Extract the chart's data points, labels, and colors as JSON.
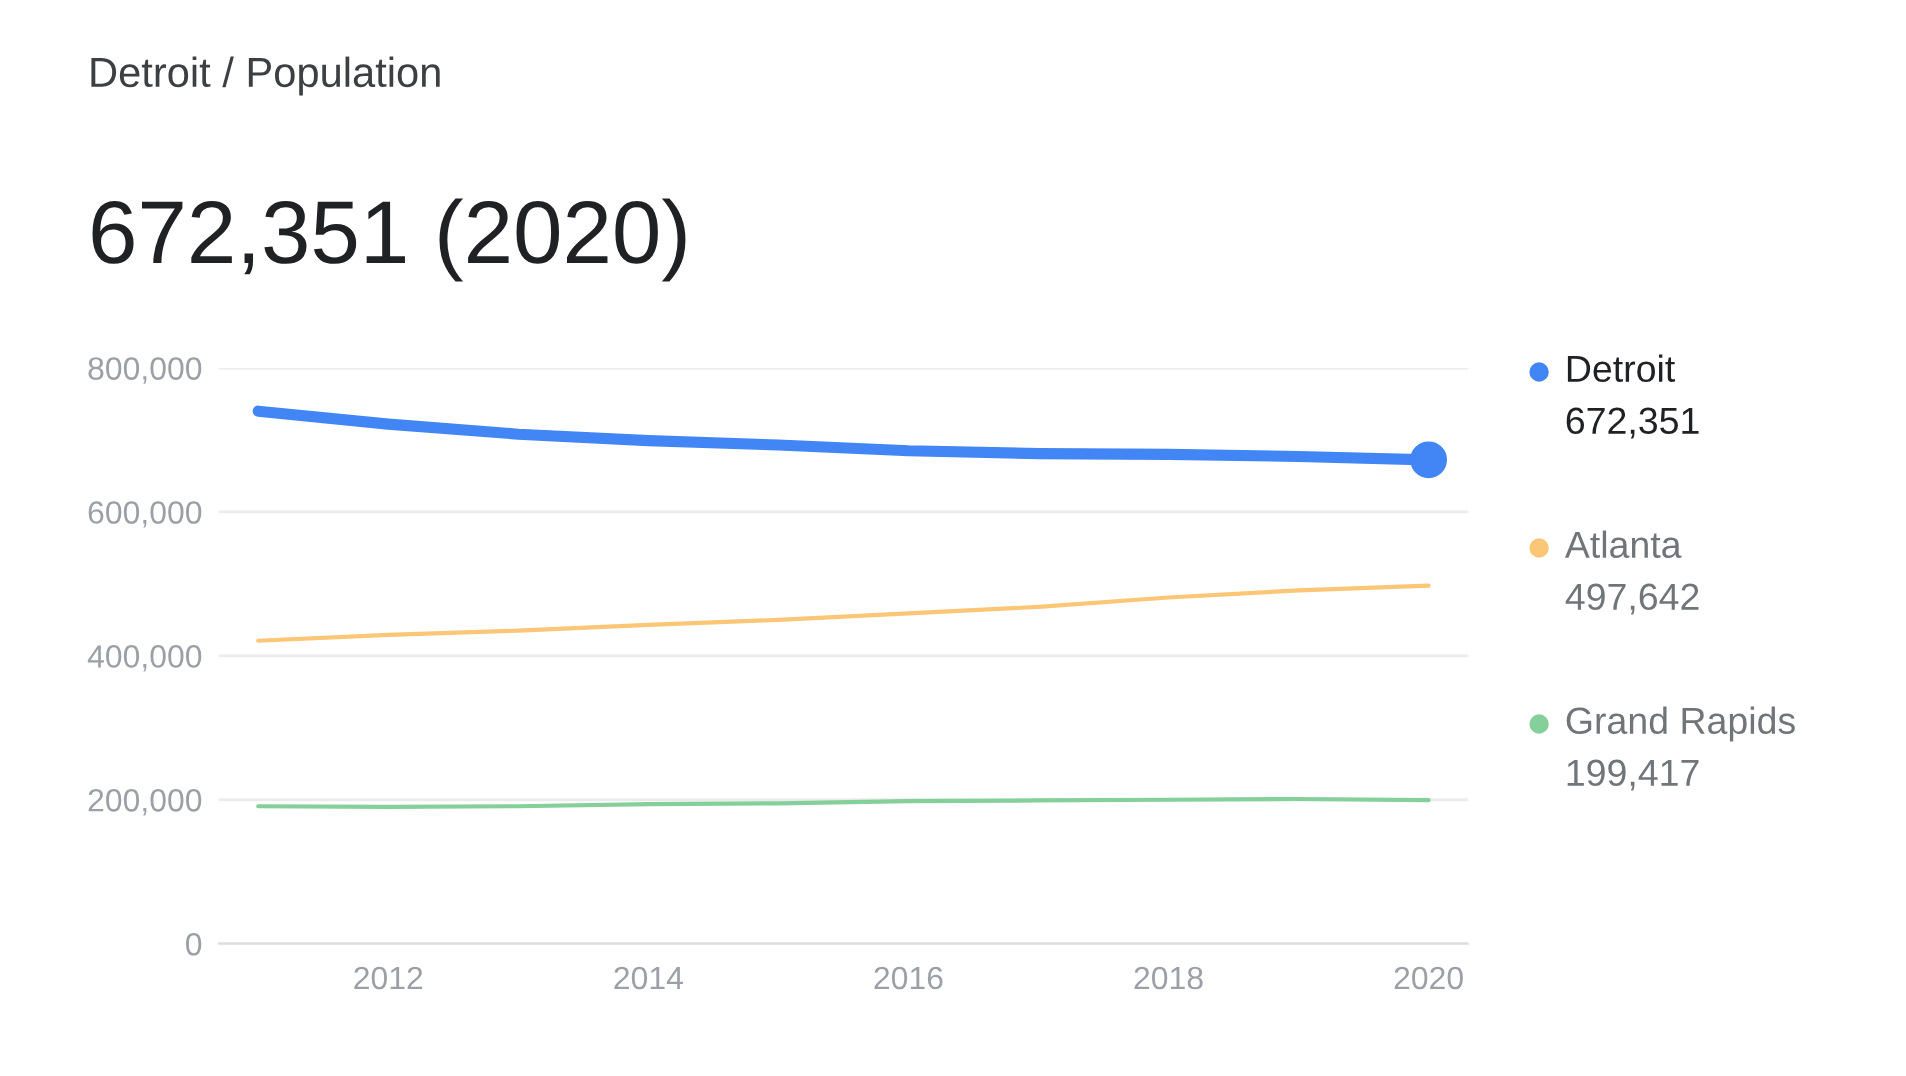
{
  "chart_data": {
    "type": "line",
    "title": "Detroit / Population",
    "subtitle": "672,351 (2020)",
    "x": [
      2011,
      2012,
      2013,
      2014,
      2015,
      2016,
      2017,
      2018,
      2019,
      2020
    ],
    "series": [
      {
        "name": "Detroit",
        "color": "#4285f4",
        "values": [
          740000,
          722000,
          708000,
          699000,
          693000,
          685000,
          681000,
          680000,
          677000,
          672351
        ]
      },
      {
        "name": "Atlanta",
        "color": "#fbc676",
        "values": [
          421000,
          429000,
          435000,
          443000,
          450000,
          459000,
          468000,
          481000,
          491000,
          497642
        ]
      },
      {
        "name": "Grand Rapids",
        "color": "#85cf9a",
        "values": [
          191000,
          190000,
          191000,
          194000,
          195000,
          198000,
          199000,
          200000,
          201000,
          199417
        ]
      },
      {
        "type": "scatter",
        "color": "#4285f4",
        "marker": "circle",
        "x": [
          2020
        ],
        "values": [
          672351
        ]
      }
    ],
    "annotations": [
      "672,351",
      "497,642",
      "199,417"
    ],
    "xlim": [
      2010.7,
      2020.3
    ],
    "xticks": [
      2012,
      2014,
      2016,
      2018,
      2020
    ],
    "ylim": [
      0,
      800000
    ],
    "yticks": [
      {
        "value": 0,
        "label": "0"
      },
      {
        "value": 200000,
        "label": "200,000"
      },
      {
        "value": 400000,
        "label": "400,000"
      },
      {
        "value": 600000,
        "label": "600,000"
      },
      {
        "value": 800000,
        "label": "800,000"
      }
    ],
    "grid": "y",
    "legend": "right"
  }
}
